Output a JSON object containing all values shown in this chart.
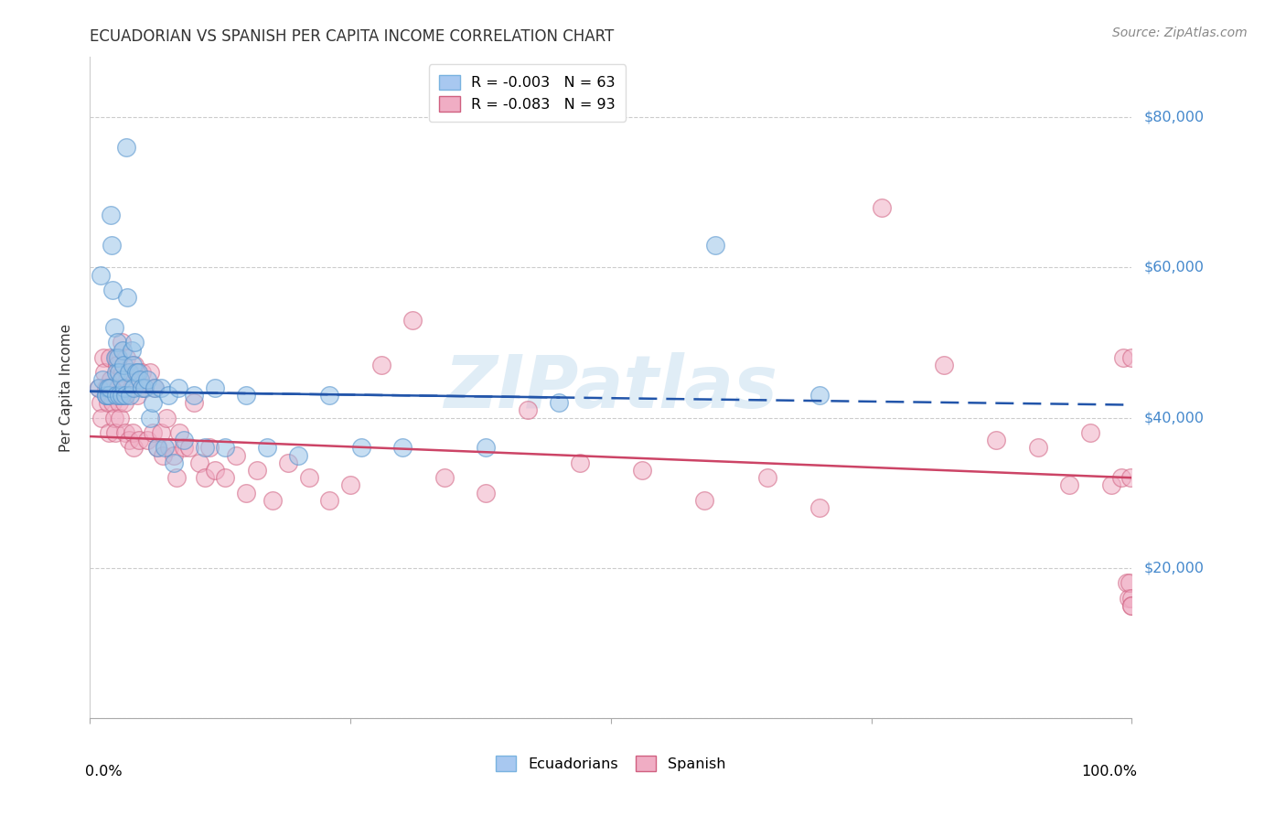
{
  "title": "ECUADORIAN VS SPANISH PER CAPITA INCOME CORRELATION CHART",
  "source": "Source: ZipAtlas.com",
  "ylabel": "Per Capita Income",
  "yticks": [
    0,
    20000,
    40000,
    60000,
    80000
  ],
  "ytick_labels": [
    "",
    "$20,000",
    "$40,000",
    "$60,000",
    "$80,000"
  ],
  "ylim": [
    0,
    88000
  ],
  "xlim": [
    0.0,
    1.0
  ],
  "blue_color": "#99c4e8",
  "pink_color": "#f0adc4",
  "blue_edge_color": "#5090cc",
  "pink_edge_color": "#d06080",
  "blue_line_color": "#2255aa",
  "pink_line_color": "#cc4466",
  "watermark_color": "#c8dff0",
  "blue_intercept": 43500,
  "blue_slope": -1800,
  "pink_intercept": 37500,
  "pink_slope": -5500,
  "ecuadorian_x": [
    0.008,
    0.01,
    0.012,
    0.015,
    0.015,
    0.017,
    0.018,
    0.019,
    0.02,
    0.021,
    0.022,
    0.023,
    0.024,
    0.025,
    0.025,
    0.026,
    0.027,
    0.028,
    0.028,
    0.03,
    0.03,
    0.031,
    0.032,
    0.033,
    0.034,
    0.035,
    0.036,
    0.037,
    0.038,
    0.04,
    0.041,
    0.042,
    0.043,
    0.044,
    0.046,
    0.048,
    0.05,
    0.052,
    0.055,
    0.058,
    0.06,
    0.062,
    0.065,
    0.068,
    0.072,
    0.075,
    0.08,
    0.085,
    0.09,
    0.1,
    0.11,
    0.12,
    0.13,
    0.15,
    0.17,
    0.2,
    0.23,
    0.26,
    0.3,
    0.38,
    0.45,
    0.6,
    0.7
  ],
  "ecuadorian_y": [
    44000,
    59000,
    45000,
    43000,
    43000,
    44000,
    43000,
    44000,
    67000,
    63000,
    57000,
    52000,
    48000,
    46000,
    43000,
    50000,
    48000,
    46000,
    43000,
    43000,
    45000,
    49000,
    47000,
    44000,
    43000,
    76000,
    56000,
    46000,
    43000,
    49000,
    47000,
    44000,
    50000,
    46000,
    46000,
    45000,
    44000,
    44000,
    45000,
    40000,
    42000,
    44000,
    36000,
    44000,
    36000,
    43000,
    34000,
    44000,
    37000,
    43000,
    36000,
    44000,
    36000,
    43000,
    36000,
    35000,
    43000,
    36000,
    36000,
    36000,
    42000,
    63000,
    43000
  ],
  "spanish_x": [
    0.008,
    0.01,
    0.011,
    0.013,
    0.014,
    0.015,
    0.016,
    0.017,
    0.018,
    0.018,
    0.019,
    0.02,
    0.021,
    0.022,
    0.023,
    0.024,
    0.025,
    0.026,
    0.027,
    0.028,
    0.029,
    0.03,
    0.031,
    0.032,
    0.033,
    0.034,
    0.035,
    0.036,
    0.037,
    0.038,
    0.04,
    0.041,
    0.042,
    0.043,
    0.045,
    0.047,
    0.05,
    0.052,
    0.055,
    0.058,
    0.06,
    0.062,
    0.065,
    0.068,
    0.07,
    0.073,
    0.076,
    0.08,
    0.083,
    0.086,
    0.09,
    0.095,
    0.1,
    0.105,
    0.11,
    0.115,
    0.12,
    0.13,
    0.14,
    0.15,
    0.16,
    0.175,
    0.19,
    0.21,
    0.23,
    0.25,
    0.28,
    0.31,
    0.34,
    0.38,
    0.42,
    0.47,
    0.53,
    0.59,
    0.65,
    0.7,
    0.76,
    0.82,
    0.87,
    0.91,
    0.94,
    0.96,
    0.98,
    0.99,
    0.992,
    0.995,
    0.997,
    0.998,
    0.999,
    1.0,
    1.0,
    1.0,
    1.0
  ],
  "spanish_y": [
    44000,
    42000,
    40000,
    48000,
    46000,
    44000,
    43000,
    42000,
    43000,
    38000,
    48000,
    45000,
    44000,
    42000,
    40000,
    38000,
    48000,
    47000,
    44000,
    42000,
    40000,
    50000,
    46000,
    43000,
    42000,
    38000,
    48000,
    45000,
    37000,
    46000,
    44000,
    38000,
    36000,
    47000,
    43000,
    37000,
    46000,
    44000,
    37000,
    46000,
    38000,
    44000,
    36000,
    38000,
    35000,
    40000,
    36000,
    35000,
    32000,
    38000,
    36000,
    36000,
    42000,
    34000,
    32000,
    36000,
    33000,
    32000,
    35000,
    30000,
    33000,
    29000,
    34000,
    32000,
    29000,
    31000,
    47000,
    53000,
    32000,
    30000,
    41000,
    34000,
    33000,
    29000,
    32000,
    28000,
    68000,
    47000,
    37000,
    36000,
    31000,
    38000,
    31000,
    32000,
    48000,
    18000,
    16000,
    18000,
    32000,
    48000,
    16000,
    15000,
    15000
  ]
}
